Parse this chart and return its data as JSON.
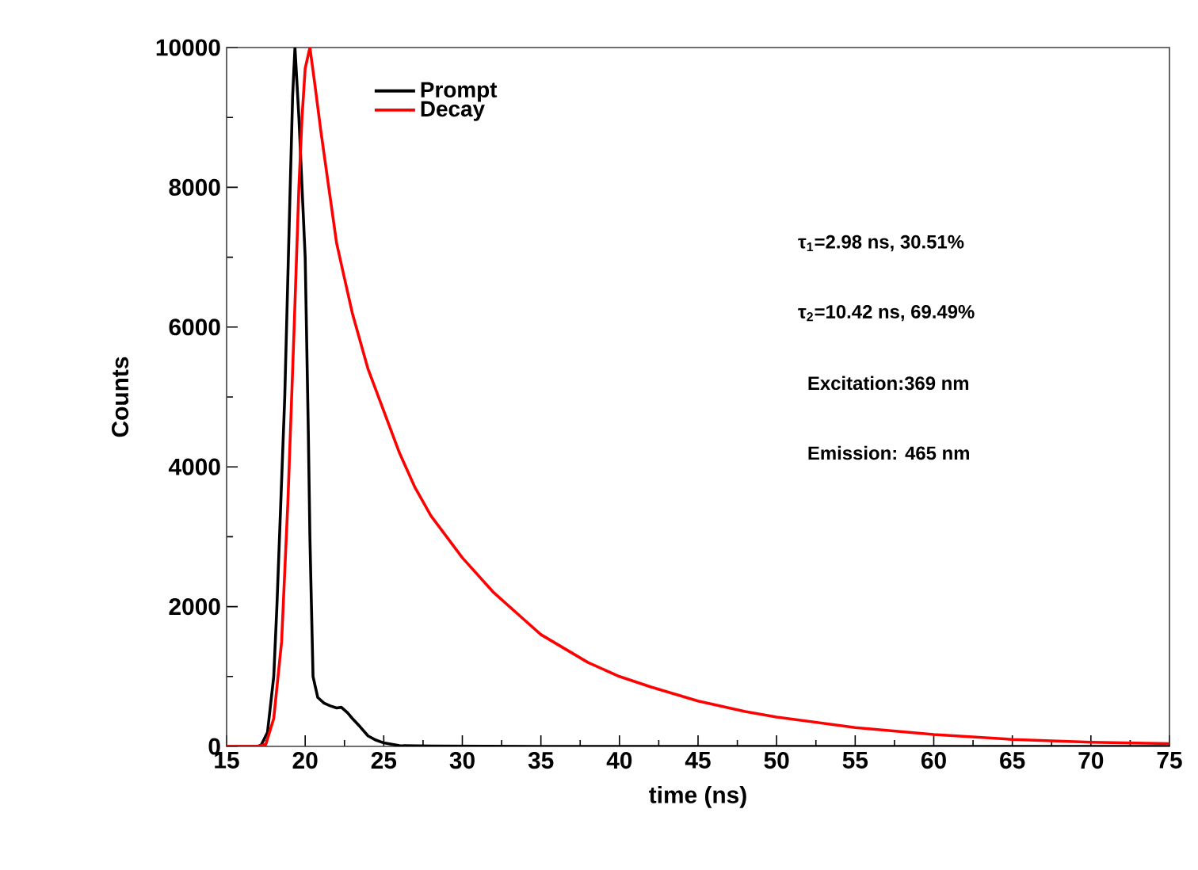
{
  "chart_data": {
    "type": "line",
    "xlabel": "time (ns)",
    "ylabel": "Counts",
    "xlim": [
      15,
      75
    ],
    "xticks": [
      15,
      20,
      25,
      30,
      35,
      40,
      45,
      50,
      55,
      60,
      65,
      70,
      75
    ],
    "ylim": [
      0,
      10000
    ],
    "yticks": [
      0,
      2000,
      4000,
      6000,
      8000,
      10000
    ],
    "legend": "top left",
    "grid": false,
    "marker": "none",
    "line_style": "solid",
    "annotations": [
      "τ$_{1}$=2.98 ns, 30.51%",
      "τ$_{2}$=10.42 ns, 69.49%",
      "Excitation:369 nm",
      "Emission: 465 nm"
    ],
    "series": [
      {
        "name": "Prompt",
        "color": "#000000",
        "x": [
          15,
          16,
          17,
          17.2,
          17.6,
          18.0,
          18.2,
          18.5,
          18.7,
          19.0,
          19.2,
          19.35,
          19.6,
          19.8,
          20.0,
          20.2,
          20.3,
          20.5,
          20.8,
          21.2,
          21.6,
          22.0,
          22.3,
          22.7,
          23.0,
          23.5,
          24.0,
          24.5,
          25.0,
          26.0,
          28,
          35,
          45,
          55,
          65,
          75
        ],
        "values": [
          0,
          0,
          0,
          20,
          200,
          1000,
          2000,
          3800,
          5000,
          7600,
          9300,
          10000,
          9000,
          8000,
          7000,
          4500,
          3000,
          1000,
          700,
          620,
          580,
          550,
          560,
          480,
          400,
          280,
          150,
          90,
          50,
          10,
          5,
          0,
          0,
          0,
          0,
          0
        ]
      },
      {
        "name": "Decay",
        "color": "#ff0000",
        "x": [
          15,
          16,
          17,
          17.5,
          18.0,
          18.5,
          18.9,
          19.3,
          19.6,
          19.8,
          20.0,
          20.3,
          20.6,
          21.0,
          21.5,
          22.0,
          22.5,
          23.0,
          24.0,
          25.0,
          26.0,
          27.0,
          28.0,
          29.0,
          30.0,
          32.0,
          34.0,
          35.0,
          38.0,
          40.0,
          42.0,
          45.0,
          48.0,
          50.0,
          55.0,
          60.0,
          65.0,
          70.0,
          75.0
        ],
        "values": [
          0,
          0,
          0,
          30,
          400,
          1500,
          3500,
          6000,
          8000,
          9000,
          9700,
          10000,
          9500,
          8800,
          8000,
          7200,
          6700,
          6200,
          5400,
          4800,
          4200,
          3700,
          3300,
          3000,
          2700,
          2200,
          1800,
          1600,
          1200,
          1000,
          850,
          650,
          500,
          420,
          270,
          170,
          100,
          60,
          40
        ]
      }
    ]
  }
}
